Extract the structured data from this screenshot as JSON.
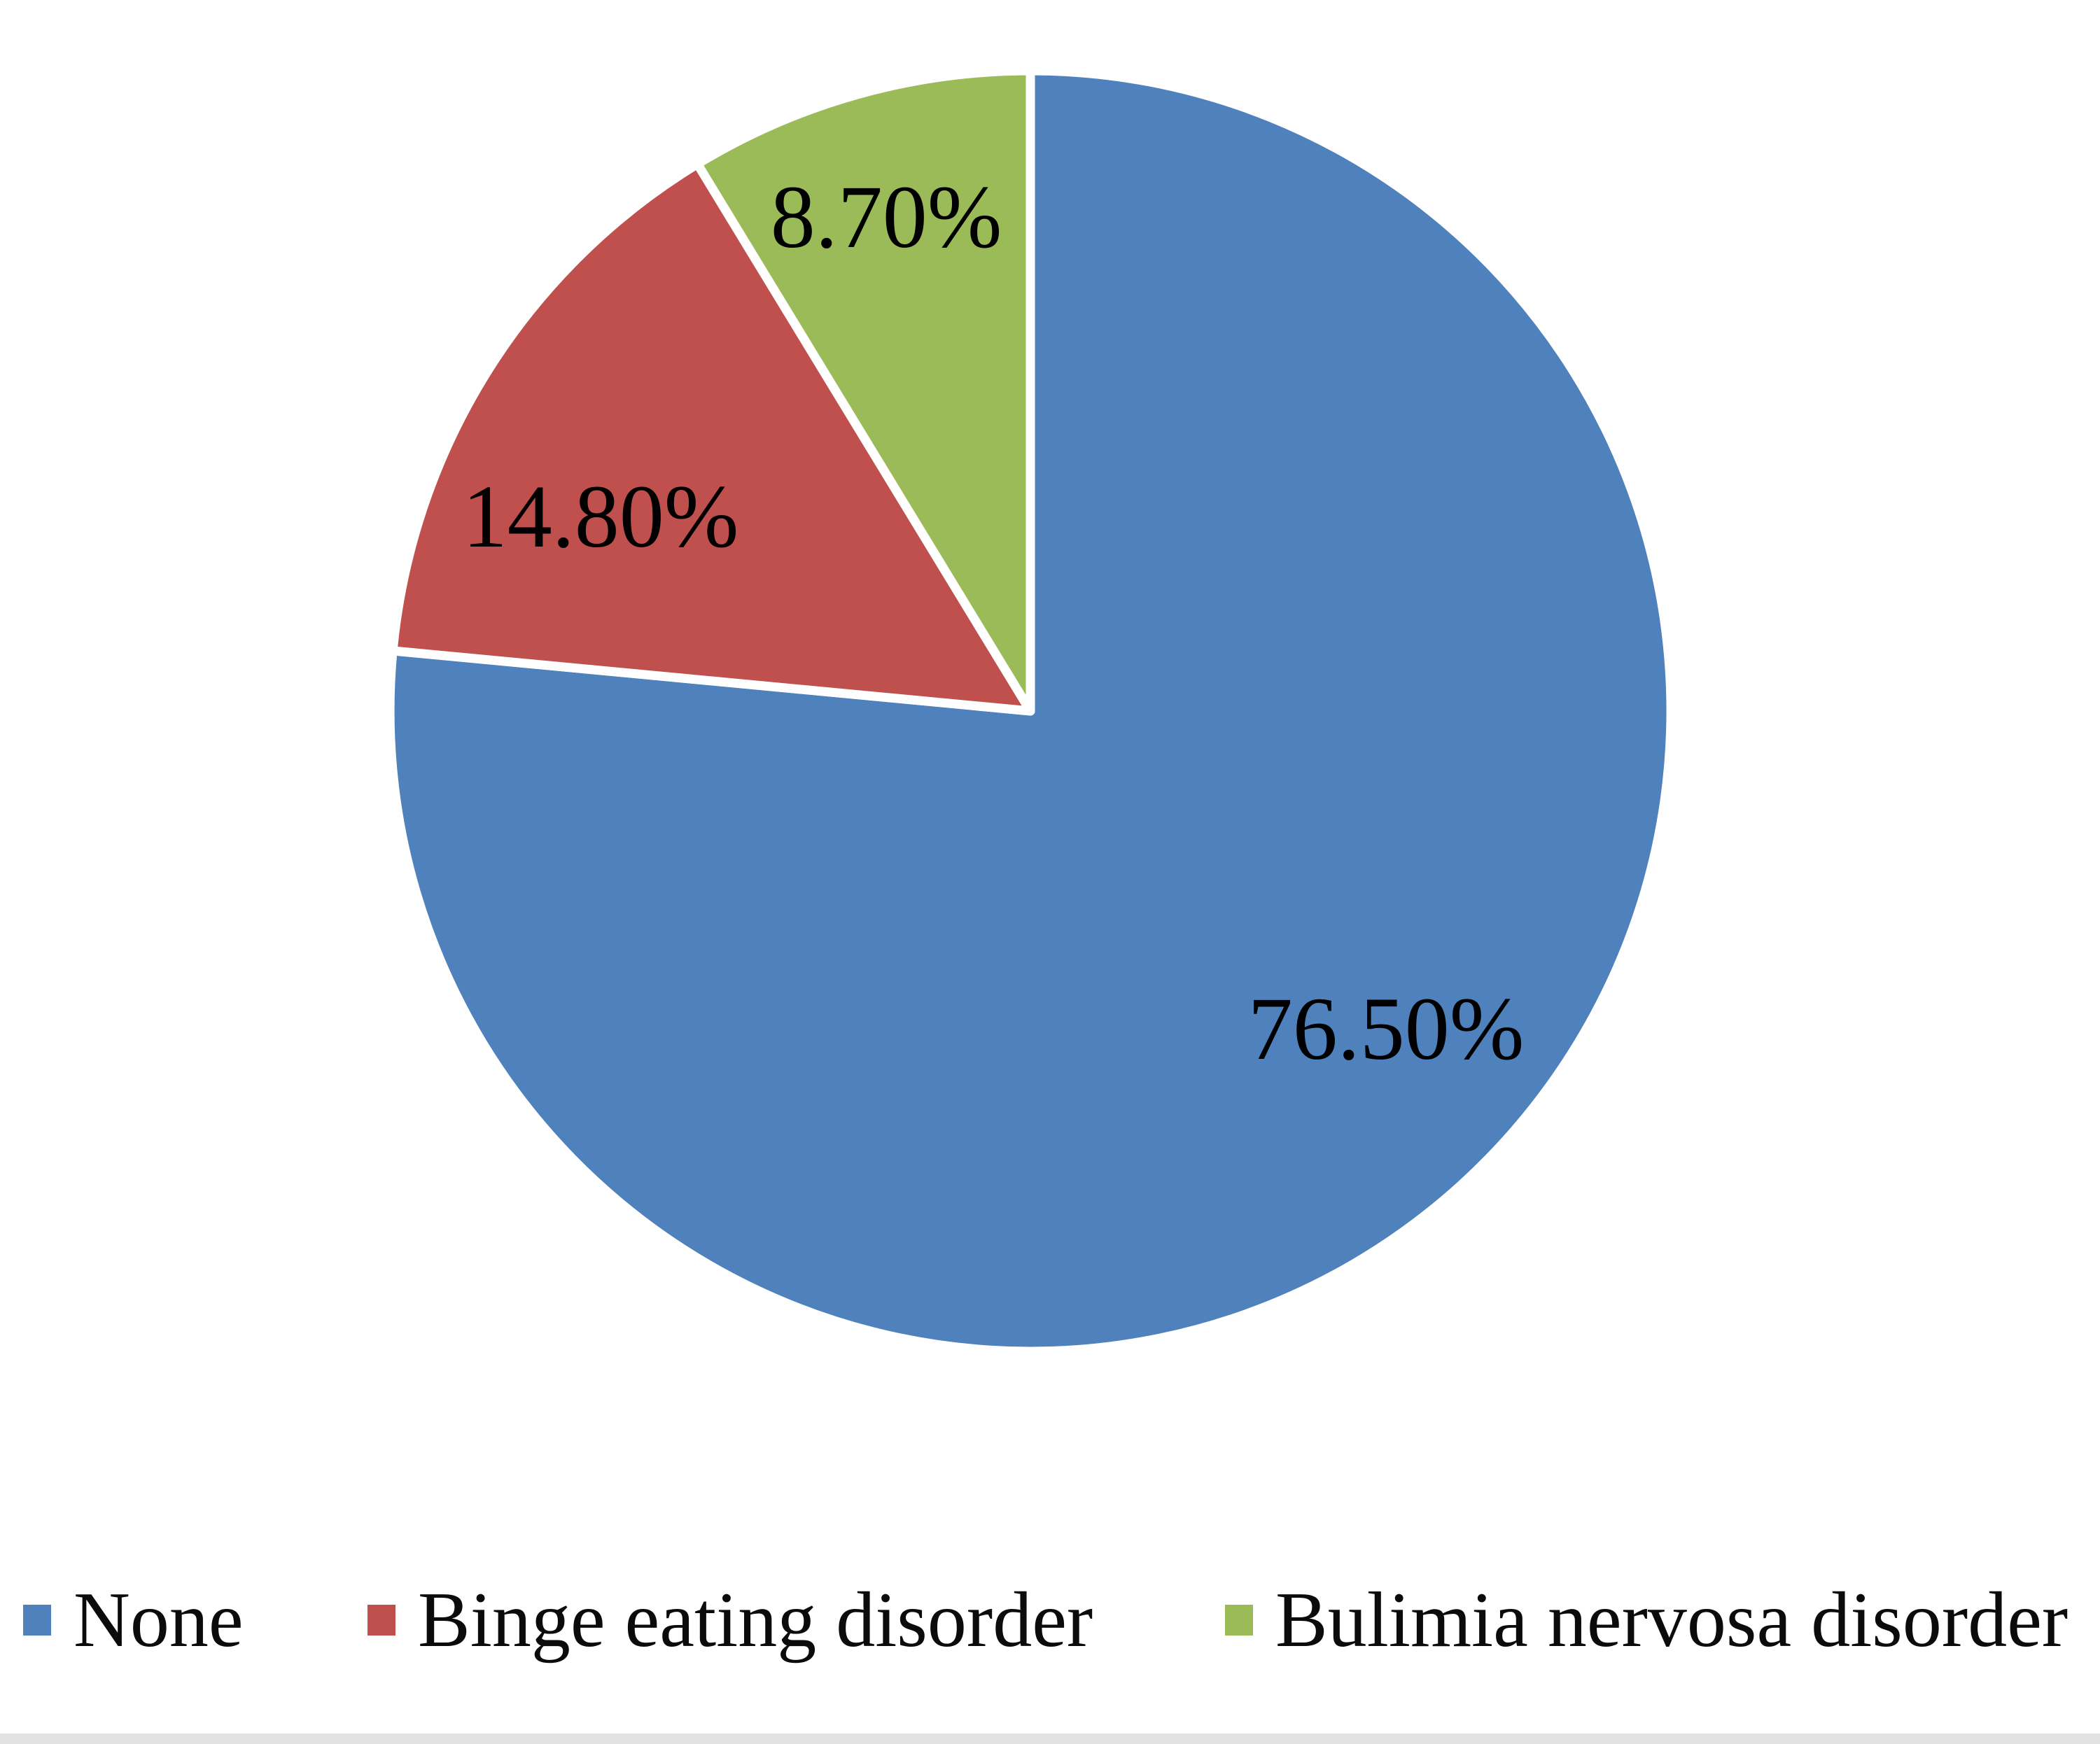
{
  "chart_data": {
    "type": "pie",
    "title": "",
    "categories": [
      "None",
      "Binge eating disorder",
      "Bulimia nervosa disorder"
    ],
    "values": [
      76.5,
      14.8,
      8.7
    ],
    "slices": [
      {
        "label": "None",
        "value": 76.5,
        "display": "76.50%",
        "color": "#4F81BD"
      },
      {
        "label": "Binge eating disorder",
        "value": 14.8,
        "display": "14.80%",
        "color": "#C0504D"
      },
      {
        "label": "Bulimia nervosa disorder",
        "value": 8.7,
        "display": "8.70%",
        "color": "#9BBB59"
      }
    ],
    "start_angle_deg": 0,
    "direction": "clockwise",
    "data_labels": "inside",
    "data_label_color": "#000000",
    "separator_color": "#FFFFFF",
    "legend_position": "bottom",
    "background_color": "#FFFFFF",
    "layout_hints": {
      "label_pos_fractions": [
        [
          0.555,
          0.496
        ],
        [
          -0.671,
          -0.304
        ],
        [
          -0.225,
          -0.772
        ]
      ]
    }
  }
}
